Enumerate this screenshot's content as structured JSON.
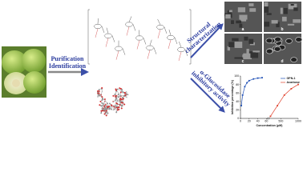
{
  "steps": [
    {
      "lines": [
        "Purification",
        "Identification"
      ]
    },
    {
      "lines": [
        "Structural",
        "characterization"
      ]
    },
    {
      "lines": [
        "α-Glucosidase",
        "inhibitory activity"
      ]
    }
  ],
  "sem_panels": [
    "a",
    "b",
    "c",
    "d"
  ],
  "chart_data": {
    "type": "line",
    "ylabel": "Inhibition percentage (%)",
    "xlabel": "Concentration (μM)",
    "xlim": [
      0,
      1000
    ],
    "xbreak": [
      60,
      200
    ],
    "ylim": [
      0,
      100
    ],
    "xticks": [
      0,
      20,
      40,
      60,
      500,
      1000
    ],
    "yticks": [
      0,
      20,
      40,
      60,
      80,
      100
    ],
    "legend": "upper right",
    "series": [
      {
        "name": "GPN-1",
        "color": "#1f4fb5",
        "x": [
          2,
          5,
          10,
          15,
          20,
          30,
          40,
          50
        ],
        "values": [
          30,
          55,
          75,
          84,
          89,
          93,
          95,
          96
        ]
      },
      {
        "name": "Acarbose",
        "color": "#e0412c",
        "x": [
          200,
          400,
          600,
          800,
          1000
        ],
        "values": [
          5,
          30,
          55,
          70,
          80
        ]
      }
    ]
  }
}
